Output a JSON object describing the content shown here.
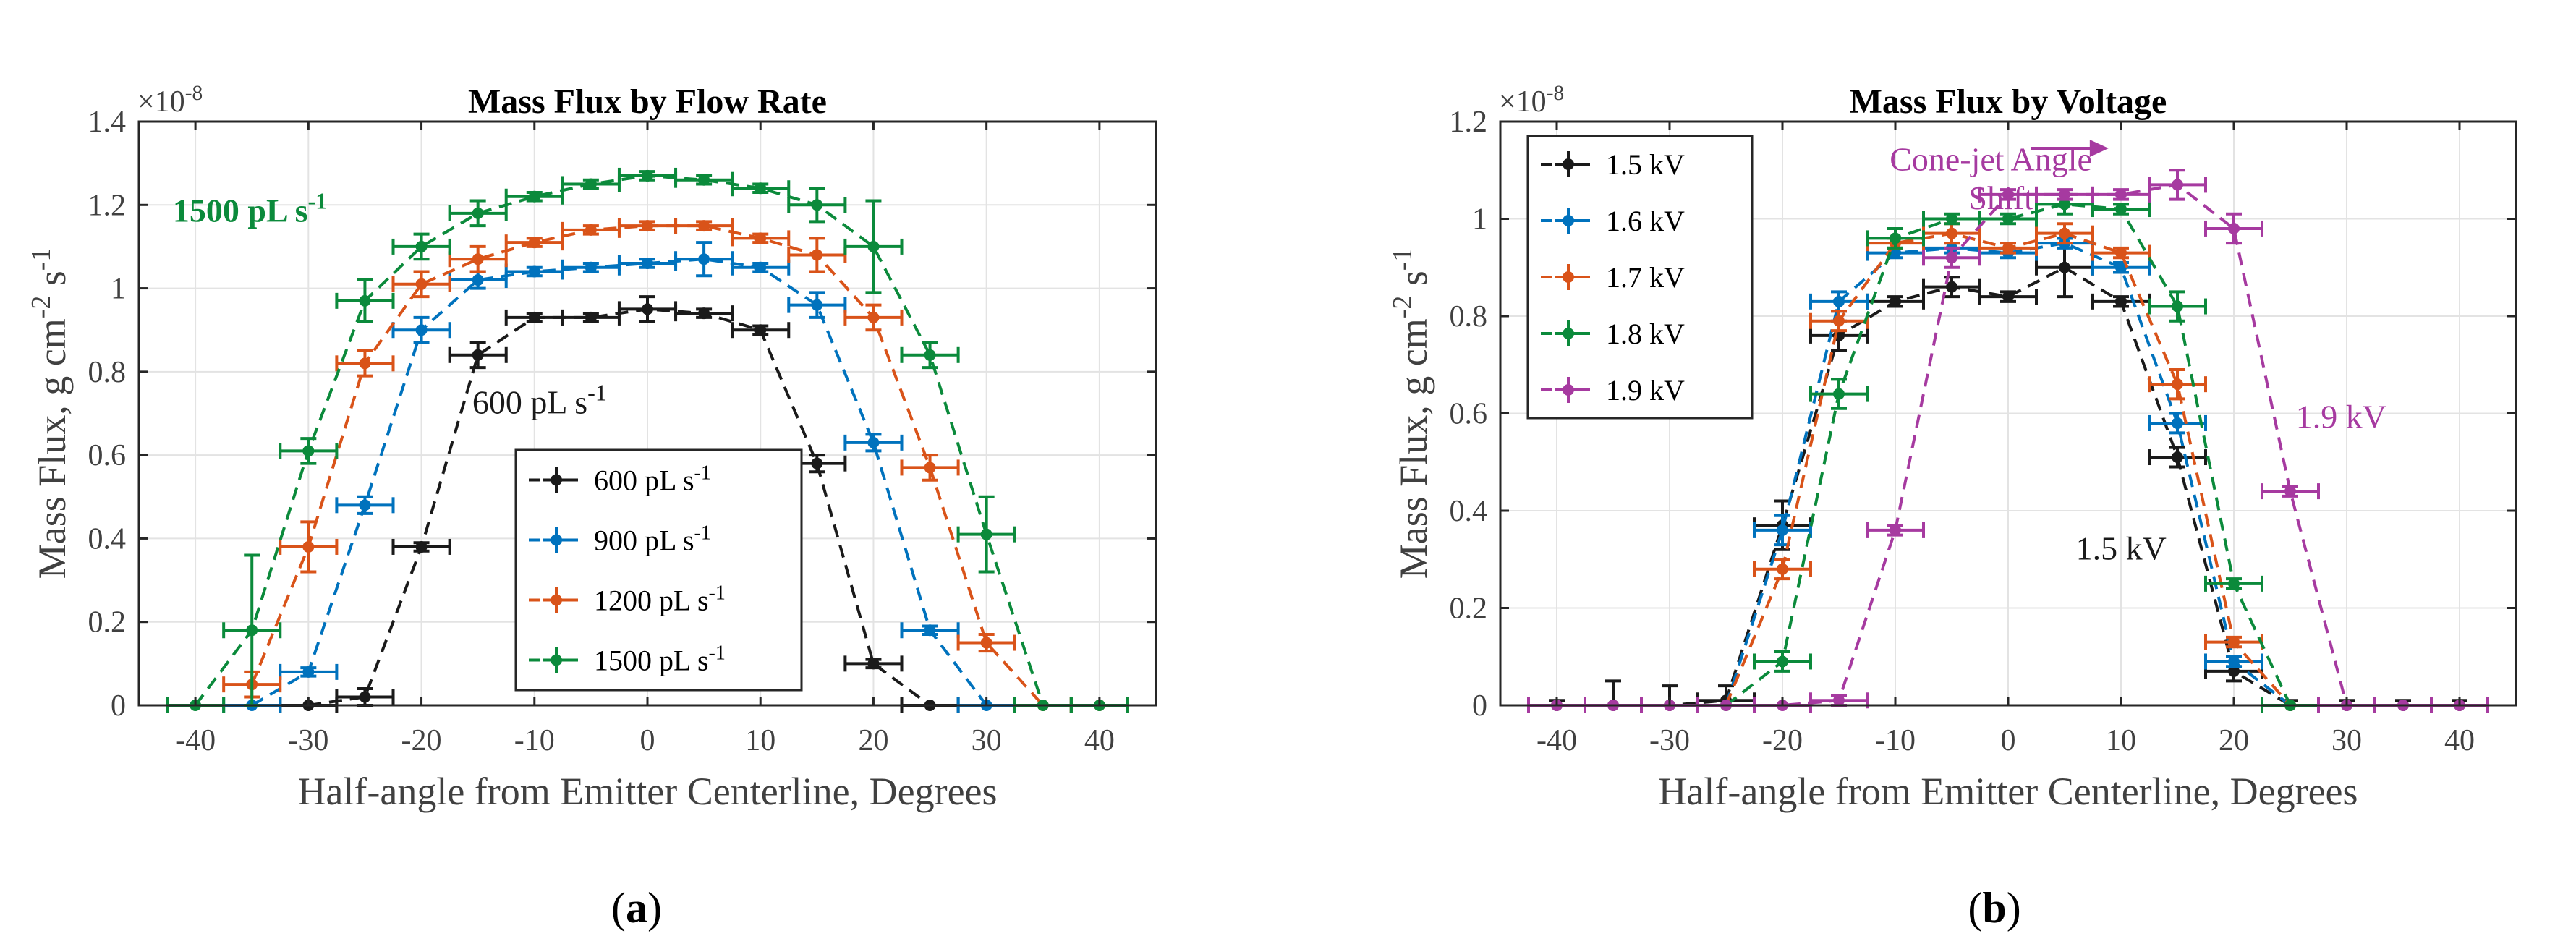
{
  "panels": [
    {
      "id": "a",
      "sublabel": "(a)",
      "sublabel_letter": "a",
      "chart_data": {
        "type": "line",
        "title": "Mass Flux by Flow Rate",
        "xlabel": "Half-angle from Emitter Centerline, Degrees",
        "ylabel": "Mass Flux, g cm-2 s-1",
        "y_multiplier": "×10-8",
        "xlim": [
          -45,
          45
        ],
        "ylim": [
          0,
          1.4
        ],
        "xticks": [
          -40,
          -30,
          -20,
          -10,
          0,
          10,
          20,
          30,
          40
        ],
        "yticks": [
          0,
          0.2,
          0.4,
          0.6,
          0.8,
          1,
          1.2,
          1.4
        ],
        "ytick_labels": [
          "0",
          "0.2",
          "0.4",
          "0.6",
          "0.8",
          "1",
          "1.2",
          "1.4"
        ],
        "grid": true,
        "error_bars": true,
        "xerr": 2.5,
        "legend_position": "bottom-center",
        "series": [
          {
            "name": "600 pL s-1",
            "color": "#1a1a1a",
            "x": [
              -30,
              -25,
              -20,
              -15,
              -10,
              -5,
              0,
              5,
              10,
              15,
              20,
              25
            ],
            "y": [
              0.0,
              0.02,
              0.38,
              0.84,
              0.93,
              0.93,
              0.95,
              0.94,
              0.9,
              0.58,
              0.1,
              0.0
            ],
            "yerr": [
              0.0,
              0.02,
              0.01,
              0.03,
              0.01,
              0.01,
              0.03,
              0.01,
              0.01,
              0.02,
              0.01,
              0.0
            ]
          },
          {
            "name": "900 pL s-1",
            "color": "#0072bd",
            "x": [
              -35,
              -30,
              -25,
              -20,
              -15,
              -10,
              -5,
              0,
              5,
              10,
              15,
              20,
              25,
              30
            ],
            "y": [
              0.0,
              0.08,
              0.48,
              0.9,
              1.02,
              1.04,
              1.05,
              1.06,
              1.07,
              1.05,
              0.96,
              0.63,
              0.18,
              0.0
            ],
            "yerr": [
              0.0,
              0.01,
              0.02,
              0.03,
              0.02,
              0.01,
              0.01,
              0.01,
              0.04,
              0.01,
              0.03,
              0.02,
              0.01,
              0.0
            ]
          },
          {
            "name": "1200 pL s-1",
            "color": "#d95319",
            "x": [
              -35,
              -30,
              -25,
              -20,
              -15,
              -10,
              -5,
              0,
              5,
              10,
              15,
              20,
              25,
              30,
              35,
              40
            ],
            "y": [
              0.05,
              0.38,
              0.82,
              1.01,
              1.07,
              1.11,
              1.14,
              1.15,
              1.15,
              1.12,
              1.08,
              0.93,
              0.57,
              0.15,
              0.0,
              0.0
            ],
            "yerr": [
              0.03,
              0.06,
              0.03,
              0.03,
              0.03,
              0.01,
              0.01,
              0.01,
              0.01,
              0.01,
              0.04,
              0.03,
              0.03,
              0.02,
              0.0,
              0.0
            ]
          },
          {
            "name": "1500 pL s-1",
            "color": "#0b8a3b",
            "x": [
              -40,
              -35,
              -30,
              -25,
              -20,
              -15,
              -10,
              -5,
              0,
              5,
              10,
              15,
              20,
              25,
              30,
              35,
              40
            ],
            "y": [
              0.0,
              0.18,
              0.61,
              0.97,
              1.1,
              1.18,
              1.22,
              1.25,
              1.27,
              1.26,
              1.24,
              1.2,
              1.1,
              0.84,
              0.41,
              0.0,
              0.0
            ],
            "yerr": [
              0.0,
              0.18,
              0.03,
              0.05,
              0.03,
              0.03,
              0.01,
              0.01,
              0.01,
              0.01,
              0.01,
              0.04,
              0.11,
              0.03,
              0.09,
              0.0,
              0.0
            ]
          }
        ],
        "annotations": [
          {
            "text": "1500 pL s-1",
            "color": "#0b8a3b",
            "bold": true,
            "x": -42,
            "y": 1.16
          },
          {
            "text": "600 pL s-1",
            "color": "#1a1a1a",
            "bold": false,
            "x": -15.5,
            "y": 0.7
          }
        ]
      }
    },
    {
      "id": "b",
      "sublabel": "(b)",
      "sublabel_letter": "b",
      "chart_data": {
        "type": "line",
        "title": "Mass Flux by Voltage",
        "xlabel": "Half-angle from Emitter Centerline, Degrees",
        "ylabel": "Mass Flux, g cm-2 s-1",
        "y_multiplier": "×10-8",
        "xlim": [
          -45,
          45
        ],
        "ylim": [
          0,
          1.2
        ],
        "xticks": [
          -40,
          -30,
          -20,
          -10,
          0,
          10,
          20,
          30,
          40
        ],
        "yticks": [
          0,
          0.2,
          0.4,
          0.6,
          0.8,
          1,
          1.2
        ],
        "ytick_labels": [
          "0",
          "0.2",
          "0.4",
          "0.6",
          "0.8",
          "1",
          "1.2"
        ],
        "grid": true,
        "error_bars": true,
        "xerr": 2.5,
        "legend_position": "top-left",
        "series": [
          {
            "name": "1.5 kV",
            "color": "#1a1a1a",
            "x": [
              -40,
              -35,
              -30,
              -25,
              -20,
              -15,
              -10,
              -5,
              0,
              5,
              10,
              15,
              20,
              25,
              30,
              35,
              40
            ],
            "y": [
              0.0,
              0.0,
              0.0,
              0.01,
              0.37,
              0.76,
              0.83,
              0.86,
              0.84,
              0.9,
              0.83,
              0.51,
              0.07,
              0.0,
              0.0,
              0.0,
              0.0
            ],
            "yerr": [
              0.01,
              0.05,
              0.04,
              0.03,
              0.05,
              0.03,
              0.01,
              0.02,
              0.01,
              0.06,
              0.01,
              0.02,
              0.02,
              0.01,
              0.01,
              0.01,
              0.01
            ]
          },
          {
            "name": "1.6 kV",
            "color": "#0072bd",
            "x": [
              -25,
              -20,
              -15,
              -10,
              -5,
              0,
              5,
              10,
              15,
              20,
              25
            ],
            "y": [
              0.0,
              0.36,
              0.83,
              0.93,
              0.94,
              0.93,
              0.95,
              0.9,
              0.58,
              0.09,
              0.0
            ],
            "yerr": [
              0.0,
              0.03,
              0.02,
              0.01,
              0.01,
              0.01,
              0.01,
              0.01,
              0.02,
              0.01,
              0.0
            ]
          },
          {
            "name": "1.7 kV",
            "color": "#d95319",
            "x": [
              -25,
              -20,
              -15,
              -10,
              -5,
              0,
              5,
              10,
              15,
              20,
              25
            ],
            "y": [
              0.0,
              0.28,
              0.79,
              0.95,
              0.97,
              0.94,
              0.97,
              0.93,
              0.66,
              0.13,
              0.0
            ],
            "yerr": [
              0.0,
              0.02,
              0.02,
              0.01,
              0.02,
              0.01,
              0.02,
              0.01,
              0.03,
              0.01,
              0.0
            ]
          },
          {
            "name": "1.8 kV",
            "color": "#0b8a3b",
            "x": [
              -25,
              -20,
              -15,
              -10,
              -5,
              0,
              5,
              10,
              15,
              20,
              25
            ],
            "y": [
              0.0,
              0.09,
              0.64,
              0.96,
              1.0,
              1.0,
              1.03,
              1.02,
              0.82,
              0.25,
              0.0
            ],
            "yerr": [
              0.0,
              0.02,
              0.03,
              0.02,
              0.01,
              0.01,
              0.02,
              0.01,
              0.03,
              0.01,
              0.0
            ]
          },
          {
            "name": "1.9 kV",
            "color": "#a63aa0",
            "x": [
              -40,
              -35,
              -30,
              -25,
              -20,
              -15,
              -10,
              -5,
              0,
              5,
              10,
              15,
              20,
              25,
              30,
              35,
              40
            ],
            "y": [
              0.0,
              0.0,
              0.0,
              0.0,
              0.0,
              0.01,
              0.36,
              0.92,
              1.05,
              1.05,
              1.05,
              1.07,
              0.98,
              0.44,
              0.0,
              0.0,
              0.0
            ],
            "yerr": [
              0.0,
              0.0,
              0.0,
              0.0,
              0.0,
              0.01,
              0.01,
              0.02,
              0.01,
              0.01,
              0.01,
              0.03,
              0.03,
              0.01,
              0.0,
              0.0,
              0.0
            ]
          }
        ],
        "annotations": [
          {
            "text": "Cone-jet Angle",
            "color": "#a63aa0",
            "bold": false,
            "x": -10.5,
            "y": 1.1
          },
          {
            "text": "Shift",
            "color": "#a63aa0",
            "bold": false,
            "x": -3.5,
            "y": 1.02
          },
          {
            "text": "1.9 kV",
            "color": "#a63aa0",
            "bold": false,
            "x": 25.5,
            "y": 0.57
          },
          {
            "text": "1.5 kV",
            "color": "#1a1a1a",
            "bold": false,
            "x": 6,
            "y": 0.3
          }
        ]
      }
    }
  ]
}
